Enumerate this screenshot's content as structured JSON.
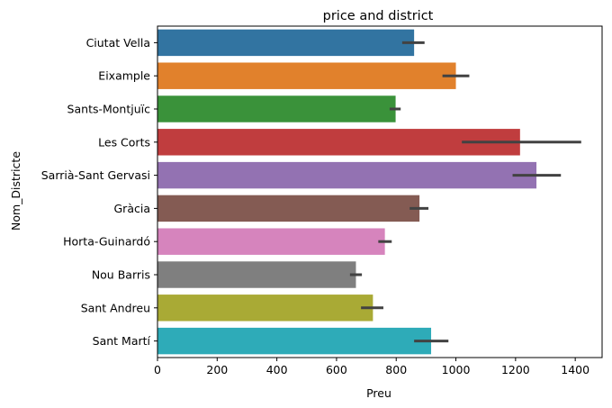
{
  "chart_data": {
    "type": "bar",
    "orientation": "horizontal",
    "title": "price and district",
    "xlabel": "Preu",
    "ylabel": "Nom_Districte",
    "xlim": [
      0,
      1490
    ],
    "xticks": [
      0,
      200,
      400,
      600,
      800,
      1000,
      1200,
      1400
    ],
    "grid": false,
    "legend": "none",
    "categories": [
      "Ciutat Vella",
      "Eixample",
      "Sants-Montjuïc",
      "Les Corts",
      "Sarrià-Sant Gervasi",
      "Gràcia",
      "Horta-Guinardó",
      "Nou Barris",
      "Sant Andreu",
      "Sant Martí"
    ],
    "values": [
      860,
      1000,
      798,
      1215,
      1270,
      878,
      762,
      665,
      722,
      917
    ],
    "error_low": [
      820,
      955,
      778,
      1020,
      1190,
      845,
      740,
      645,
      682,
      860
    ],
    "error_high": [
      895,
      1045,
      815,
      1420,
      1352,
      908,
      785,
      685,
      757,
      975
    ],
    "colors": [
      "#3274a1",
      "#e1812c",
      "#3a923a",
      "#c03d3e",
      "#9372b2",
      "#845b53",
      "#d684bd",
      "#7f7f7f",
      "#a9aa35",
      "#2eabb8"
    ],
    "errorbar_color": "#424242"
  }
}
